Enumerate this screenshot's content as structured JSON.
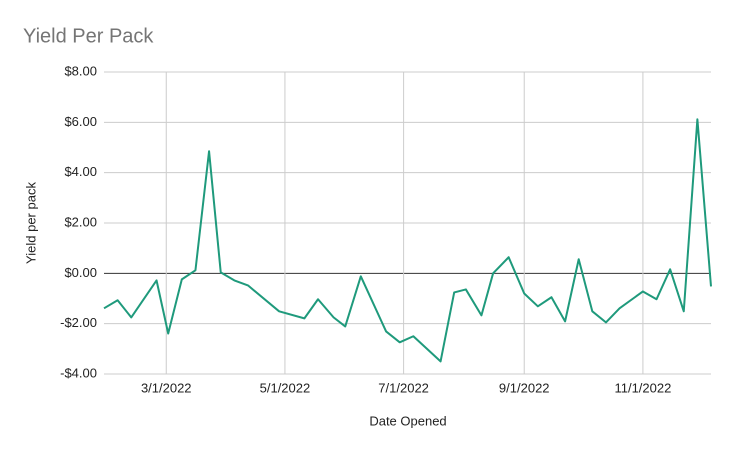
{
  "chart_data": {
    "type": "line",
    "title": "Yield Per Pack",
    "x_label": "Date Opened",
    "y_label": "Yield per pack",
    "x": [
      "1/28/2022",
      "2/4/2022",
      "2/11/2022",
      "2/24/2022",
      "3/2/2022",
      "3/9/2022",
      "3/16/2022",
      "3/23/2022",
      "3/29/2022",
      "4/5/2022",
      "4/12/2022",
      "4/28/2022",
      "5/11/2022",
      "5/18/2022",
      "5/26/2022",
      "6/1/2022",
      "6/9/2022",
      "6/22/2022",
      "6/29/2022",
      "7/6/2022",
      "7/20/2022",
      "7/27/2022",
      "8/2/2022",
      "8/10/2022",
      "8/16/2022",
      "8/24/2022",
      "9/1/2022",
      "9/8/2022",
      "9/15/2022",
      "9/22/2022",
      "9/29/2022",
      "10/6/2022",
      "10/13/2022",
      "10/20/2022",
      "11/1/2022",
      "11/8/2022",
      "11/15/2022",
      "11/22/2022",
      "11/29/2022",
      "12/6/2022"
    ],
    "series": [
      {
        "name": "Yield per pack",
        "color": "#1f9a7c",
        "values": [
          -1.39,
          -1.07,
          -1.75,
          -0.28,
          -2.39,
          -0.24,
          0.12,
          4.85,
          0.04,
          -0.28,
          -0.48,
          -1.51,
          -1.79,
          -1.03,
          -1.75,
          -2.11,
          -0.12,
          -2.31,
          -2.74,
          -2.5,
          -3.5,
          -0.76,
          -0.64,
          -1.67,
          0,
          0.64,
          -0.8,
          -1.31,
          -0.95,
          -1.91,
          0.56,
          -1.51,
          -1.95,
          -1.39,
          -0.72,
          -1.03,
          0.16,
          -1.51,
          6.12,
          -0.52
        ]
      }
    ],
    "xlim": [
      "1/28/2022",
      "12/6/2022"
    ],
    "xticks": [
      "3/1/2022",
      "5/1/2022",
      "7/1/2022",
      "9/1/2022",
      "11/1/2022"
    ],
    "ylim": [
      -4,
      8
    ],
    "yticks": [
      {
        "value": -4,
        "label": "-$4.00"
      },
      {
        "value": -2,
        "label": "-$2.00"
      },
      {
        "value": 0,
        "label": "$0.00"
      },
      {
        "value": 2,
        "label": "$2.00"
      },
      {
        "value": 4,
        "label": "$4.00"
      },
      {
        "value": 6,
        "label": "$6.00"
      },
      {
        "value": 8,
        "label": "$8.00"
      }
    ],
    "grid": true
  }
}
